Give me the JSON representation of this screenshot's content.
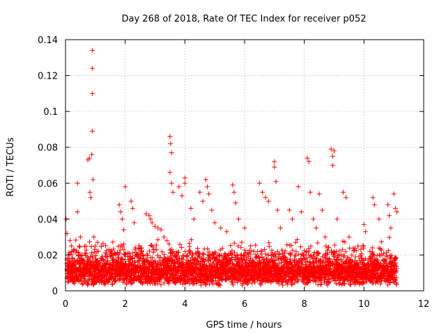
{
  "chart_data": {
    "type": "scatter",
    "title": "Day 268 of 2018, Rate Of TEC Index for receiver p052",
    "xlabel": "GPS time / hours",
    "ylabel": "ROTI / TECUs",
    "xlim": [
      0,
      12
    ],
    "ylim": [
      0,
      0.14
    ],
    "xticks": [
      0,
      2,
      4,
      6,
      8,
      10,
      12
    ],
    "yticks": [
      0,
      0.02,
      0.04,
      0.06,
      0.08,
      0.1,
      0.12,
      0.14
    ],
    "xtick_labels": [
      "0",
      "2",
      "4",
      "6",
      "8",
      "10",
      "12"
    ],
    "ytick_labels": [
      "0",
      "0.02",
      "0.04",
      "0.06",
      "0.08",
      "0.1",
      "0.12",
      "0.14"
    ],
    "grid": true,
    "marker": "+",
    "color": "#ff0000",
    "series": [
      {
        "name": "ROTI",
        "points": [
          [
            0.02,
            0.04
          ],
          [
            0.05,
            0.032
          ],
          [
            0.06,
            0.012
          ],
          [
            0.08,
            0.008
          ],
          [
            0.1,
            0.02
          ],
          [
            0.15,
            0.028
          ],
          [
            0.2,
            0.025
          ],
          [
            0.25,
            0.018
          ],
          [
            0.3,
            0.015
          ],
          [
            0.4,
            0.06
          ],
          [
            0.4,
            0.044
          ],
          [
            0.5,
            0.03
          ],
          [
            0.55,
            0.02
          ],
          [
            0.6,
            0.012
          ],
          [
            0.7,
            0.01
          ],
          [
            0.75,
            0.073
          ],
          [
            0.8,
            0.074
          ],
          [
            0.82,
            0.055
          ],
          [
            0.85,
            0.052
          ],
          [
            0.88,
            0.076
          ],
          [
            0.9,
            0.134
          ],
          [
            0.9,
            0.124
          ],
          [
            0.9,
            0.11
          ],
          [
            0.9,
            0.089
          ],
          [
            0.92,
            0.062
          ],
          [
            0.95,
            0.03
          ],
          [
            1.0,
            0.025
          ],
          [
            1.1,
            0.022
          ],
          [
            1.2,
            0.018
          ],
          [
            1.5,
            0.015
          ],
          [
            1.8,
            0.048
          ],
          [
            1.85,
            0.044
          ],
          [
            1.9,
            0.04
          ],
          [
            1.95,
            0.034
          ],
          [
            2.0,
            0.058
          ],
          [
            2.2,
            0.05
          ],
          [
            2.25,
            0.046
          ],
          [
            2.3,
            0.038
          ],
          [
            2.5,
            0.02
          ],
          [
            2.7,
            0.043
          ],
          [
            2.8,
            0.042
          ],
          [
            2.85,
            0.04
          ],
          [
            2.9,
            0.038
          ],
          [
            3.0,
            0.036
          ],
          [
            3.1,
            0.035
          ],
          [
            3.2,
            0.034
          ],
          [
            3.3,
            0.03
          ],
          [
            3.4,
            0.028
          ],
          [
            3.5,
            0.086
          ],
          [
            3.52,
            0.082
          ],
          [
            3.55,
            0.077
          ],
          [
            3.5,
            0.066
          ],
          [
            3.55,
            0.06
          ],
          [
            3.6,
            0.055
          ],
          [
            3.8,
            0.058
          ],
          [
            3.9,
            0.053
          ],
          [
            4.0,
            0.063
          ],
          [
            4.0,
            0.06
          ],
          [
            4.2,
            0.046
          ],
          [
            4.3,
            0.04
          ],
          [
            4.5,
            0.055
          ],
          [
            4.6,
            0.05
          ],
          [
            4.7,
            0.062
          ],
          [
            4.75,
            0.058
          ],
          [
            4.8,
            0.054
          ],
          [
            4.9,
            0.045
          ],
          [
            5.0,
            0.038
          ],
          [
            5.2,
            0.035
          ],
          [
            5.4,
            0.033
          ],
          [
            5.6,
            0.059
          ],
          [
            5.65,
            0.055
          ],
          [
            5.7,
            0.049
          ],
          [
            5.8,
            0.04
          ],
          [
            6.0,
            0.035
          ],
          [
            6.2,
            0.025
          ],
          [
            6.5,
            0.06
          ],
          [
            6.6,
            0.055
          ],
          [
            6.7,
            0.052
          ],
          [
            6.8,
            0.05
          ],
          [
            7.0,
            0.072
          ],
          [
            7.0,
            0.069
          ],
          [
            7.05,
            0.061
          ],
          [
            7.1,
            0.045
          ],
          [
            7.2,
            0.035
          ],
          [
            7.5,
            0.045
          ],
          [
            7.6,
            0.04
          ],
          [
            7.8,
            0.058
          ],
          [
            7.9,
            0.044
          ],
          [
            8.1,
            0.074
          ],
          [
            8.15,
            0.072
          ],
          [
            8.2,
            0.055
          ],
          [
            8.3,
            0.04
          ],
          [
            8.4,
            0.035
          ],
          [
            8.5,
            0.054
          ],
          [
            8.6,
            0.045
          ],
          [
            8.7,
            0.03
          ],
          [
            8.9,
            0.079
          ],
          [
            8.95,
            0.075
          ],
          [
            8.95,
            0.07
          ],
          [
            9.0,
            0.078
          ],
          [
            9.1,
            0.04
          ],
          [
            9.3,
            0.055
          ],
          [
            9.4,
            0.052
          ],
          [
            9.5,
            0.03
          ],
          [
            9.8,
            0.025
          ],
          [
            10.0,
            0.037
          ],
          [
            10.05,
            0.033
          ],
          [
            10.2,
            0.022
          ],
          [
            10.3,
            0.052
          ],
          [
            10.35,
            0.048
          ],
          [
            10.5,
            0.04
          ],
          [
            10.6,
            0.02
          ],
          [
            10.8,
            0.048
          ],
          [
            10.85,
            0.042
          ],
          [
            10.9,
            0.035
          ],
          [
            11.0,
            0.054
          ],
          [
            11.05,
            0.046
          ],
          [
            11.1,
            0.044
          ]
        ]
      }
    ],
    "dense_band": {
      "x_range": [
        0.05,
        11.1
      ],
      "y_floor": 0.003,
      "y_typical": 0.012,
      "y_upper": 0.035
    }
  }
}
